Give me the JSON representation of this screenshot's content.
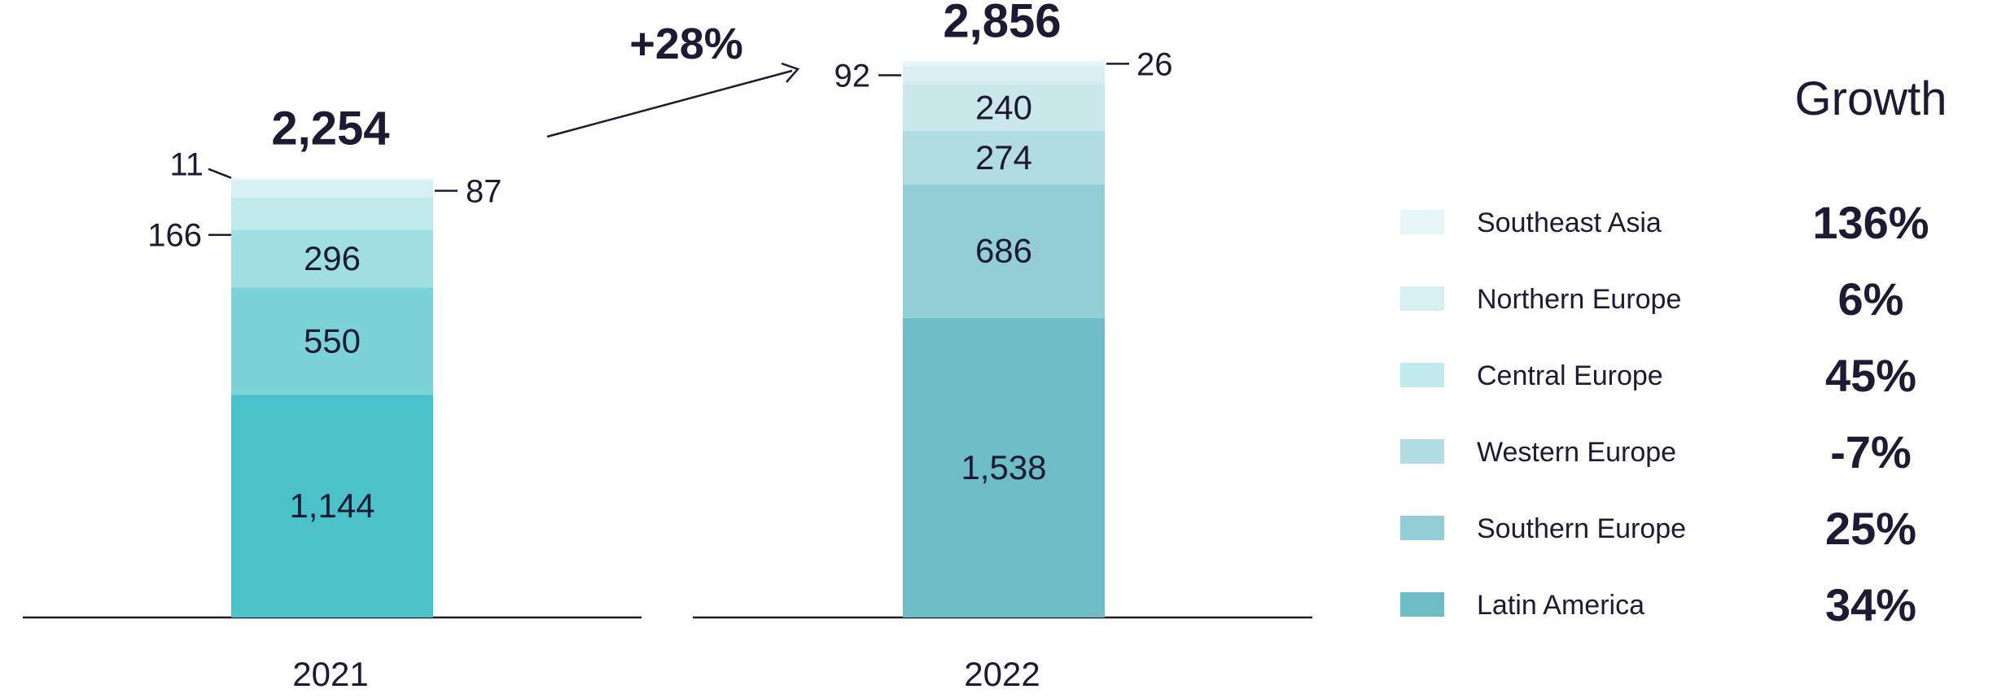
{
  "chart_data": {
    "type": "bar",
    "stacked": true,
    "categories": [
      "2021",
      "2022"
    ],
    "series": [
      {
        "name": "Latin America",
        "values": [
          1144,
          1538
        ],
        "color": "#4bc2c9",
        "color_2022": "#6ebcc5"
      },
      {
        "name": "Southern Europe",
        "values": [
          550,
          686
        ],
        "color": "#7bd3d8",
        "color_2022": "#93ced6"
      },
      {
        "name": "Western Europe",
        "values": [
          296,
          274
        ],
        "color": "#9fdee2",
        "color_2022": "#b1dce1"
      },
      {
        "name": "Central Europe",
        "values": [
          166,
          240
        ],
        "color": "#c0e9ec",
        "color_2022": "#cae7ea"
      },
      {
        "name": "Northern Europe",
        "values": [
          87,
          92
        ],
        "color": "#d6f0f2",
        "color_2022": "#d9eef0"
      },
      {
        "name": "Southeast Asia",
        "values": [
          11,
          26
        ],
        "color": "#e6f5f6",
        "color_2022": "#e8f5f6"
      }
    ],
    "totals": [
      "2,254",
      "2,856"
    ],
    "total_values": [
      2254,
      2856
    ],
    "change_label": "+28%",
    "labels_2021": {
      "inside": [
        "1,144",
        "550",
        "296"
      ],
      "outside_left": [
        "11",
        "166"
      ],
      "outside_right": [
        "87"
      ]
    },
    "labels_2022": {
      "inside": [
        "1,538",
        "686",
        "274",
        "240"
      ],
      "outside_left": [
        "92"
      ],
      "outside_right": [
        "26"
      ]
    },
    "legend": {
      "position": "right",
      "growth_header": "Growth",
      "items": [
        {
          "name": "Southeast Asia",
          "growth": "136%",
          "color": "#e6f5f6"
        },
        {
          "name": "Northern Europe",
          "growth": "6%",
          "color": "#d6f0f2"
        },
        {
          "name": "Central Europe",
          "growth": "45%",
          "color": "#c0e9ec"
        },
        {
          "name": "Western Europe",
          "growth": "-7%",
          "color": "#b1dce1"
        },
        {
          "name": "Southern Europe",
          "growth": "25%",
          "color": "#93ced6"
        },
        {
          "name": "Latin America",
          "growth": "34%",
          "color": "#6ebcc5"
        }
      ]
    },
    "ylim": [
      0,
      3000
    ],
    "grid": false
  }
}
